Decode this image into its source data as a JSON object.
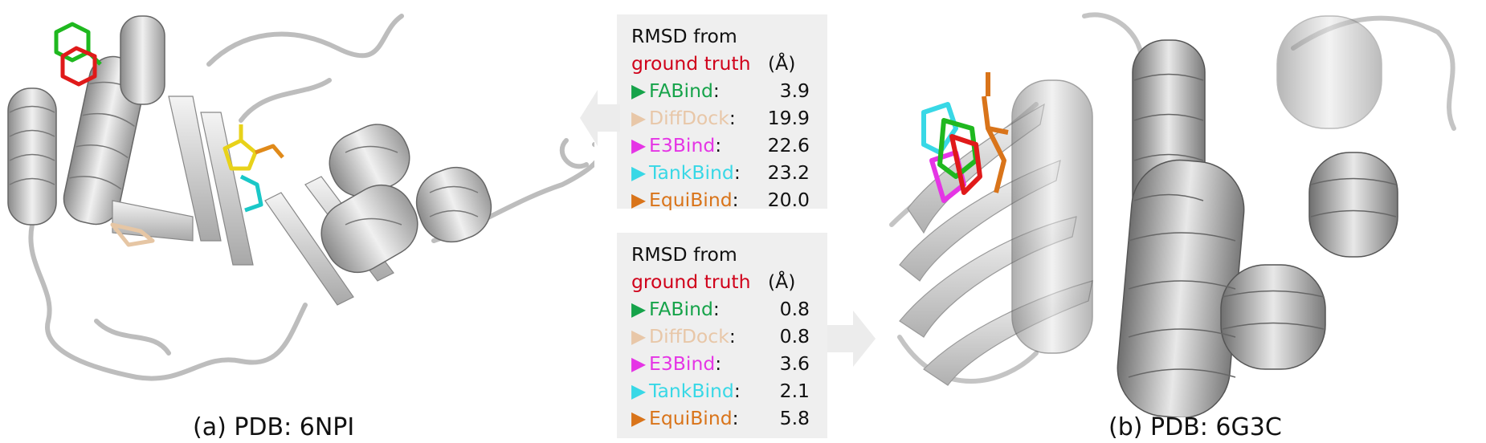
{
  "panels": [
    {
      "header_line1": "RMSD from",
      "header_line2": "ground truth",
      "unit": "(Å)",
      "rows": [
        {
          "name": "FABind",
          "value": "3.9",
          "color": "#16a34a"
        },
        {
          "name": "DiffDock",
          "value": "19.9",
          "color": "#e8c7a8"
        },
        {
          "name": "E3Bind",
          "value": "22.6",
          "color": "#e535e5"
        },
        {
          "name": "TankBind",
          "value": "23.2",
          "color": "#38d8e6"
        },
        {
          "name": "EquiBind",
          "value": "20.0",
          "color": "#d9741a"
        }
      ]
    },
    {
      "header_line1": "RMSD from",
      "header_line2": "ground truth",
      "unit": "(Å)",
      "rows": [
        {
          "name": "FABind",
          "value": "0.8",
          "color": "#16a34a"
        },
        {
          "name": "DiffDock",
          "value": "0.8",
          "color": "#e8c7a8"
        },
        {
          "name": "E3Bind",
          "value": "3.6",
          "color": "#e535e5"
        },
        {
          "name": "TankBind",
          "value": "2.1",
          "color": "#38d8e6"
        },
        {
          "name": "EquiBind",
          "value": "5.8",
          "color": "#d9741a"
        }
      ]
    }
  ],
  "captions": {
    "left": "(a) PDB: 6NPI",
    "right": "(b) PDB: 6G3C"
  },
  "colors": {
    "ground_truth": "#d0021b",
    "protein": "#c8c8c8",
    "panel_bg": "#efefef"
  }
}
